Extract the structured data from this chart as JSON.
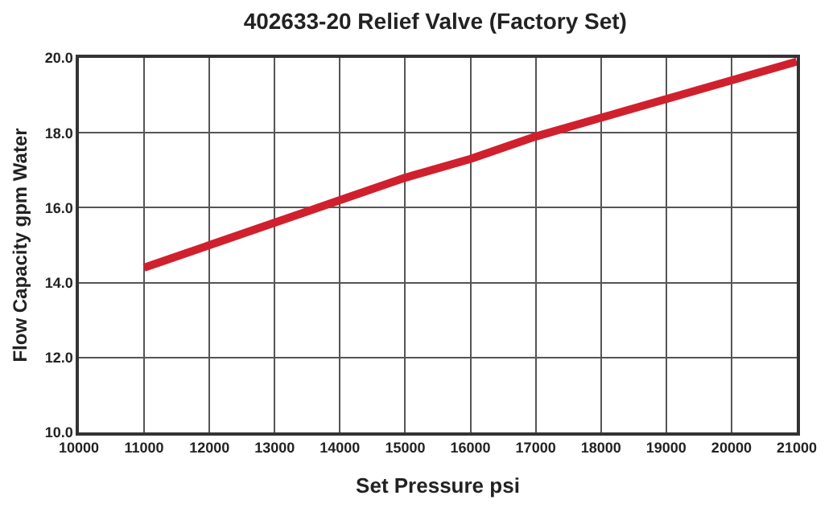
{
  "chart_data": {
    "type": "line",
    "title": "402633-20 Relief Valve (Factory Set)",
    "xlabel": "Set Pressure psi",
    "ylabel": "Flow Capacity gpm Water",
    "x": [
      11000,
      12000,
      13000,
      14000,
      15000,
      16000,
      17000,
      18000,
      19000,
      20000,
      21000
    ],
    "series": [
      {
        "color": "#d0202e",
        "values": [
          14.4,
          15.0,
          15.6,
          16.2,
          16.8,
          17.3,
          17.9,
          18.4,
          18.9,
          19.4,
          19.9
        ]
      }
    ],
    "xlim": [
      10000,
      21000
    ],
    "xticks": [
      10000,
      11000,
      12000,
      13000,
      14000,
      15000,
      16000,
      17000,
      18000,
      19000,
      20000,
      21000
    ],
    "ylim": [
      10,
      20
    ],
    "yticks": [
      {
        "value": 10,
        "label": "10.0"
      },
      {
        "value": 12,
        "label": "12.0"
      },
      {
        "value": 14,
        "label": "14.0"
      },
      {
        "value": 16,
        "label": "16.0"
      },
      {
        "value": 18,
        "label": "18.0"
      },
      {
        "value": 20,
        "label": "20.0"
      }
    ],
    "grid": true,
    "marker": "none",
    "line_style": "solid"
  }
}
